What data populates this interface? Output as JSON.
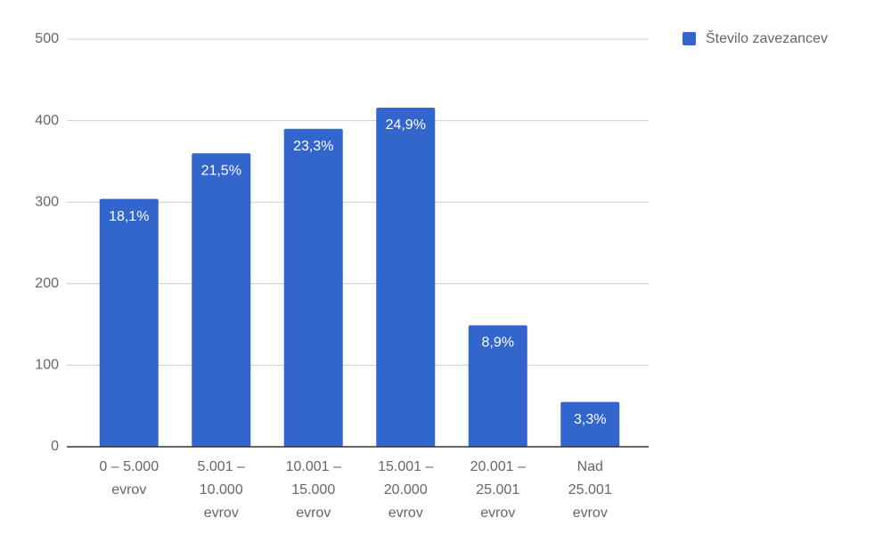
{
  "chart_data": {
    "type": "bar",
    "categories": [
      [
        "0 – 5.000",
        "evrov"
      ],
      [
        "5.001 –",
        "10.000",
        "evrov"
      ],
      [
        "10.001 –",
        "15.000",
        "evrov"
      ],
      [
        "15.001 –",
        "20.000",
        "evrov"
      ],
      [
        "20.001 –",
        "25.001",
        "evrov"
      ],
      [
        "Nad",
        "25.001",
        "evrov"
      ]
    ],
    "series": [
      {
        "name": "Število zavezancev",
        "color": "#3366cc",
        "values": [
          304,
          360,
          390,
          416,
          149,
          55
        ]
      }
    ],
    "percent_labels": [
      "18,1%",
      "21,5%",
      "23,3%",
      "24,9%",
      "8,9%",
      "3,3%"
    ],
    "ylim": [
      0,
      500
    ],
    "yticks": [
      0,
      100,
      200,
      300,
      400,
      500
    ],
    "grid": true,
    "legend": "right"
  }
}
